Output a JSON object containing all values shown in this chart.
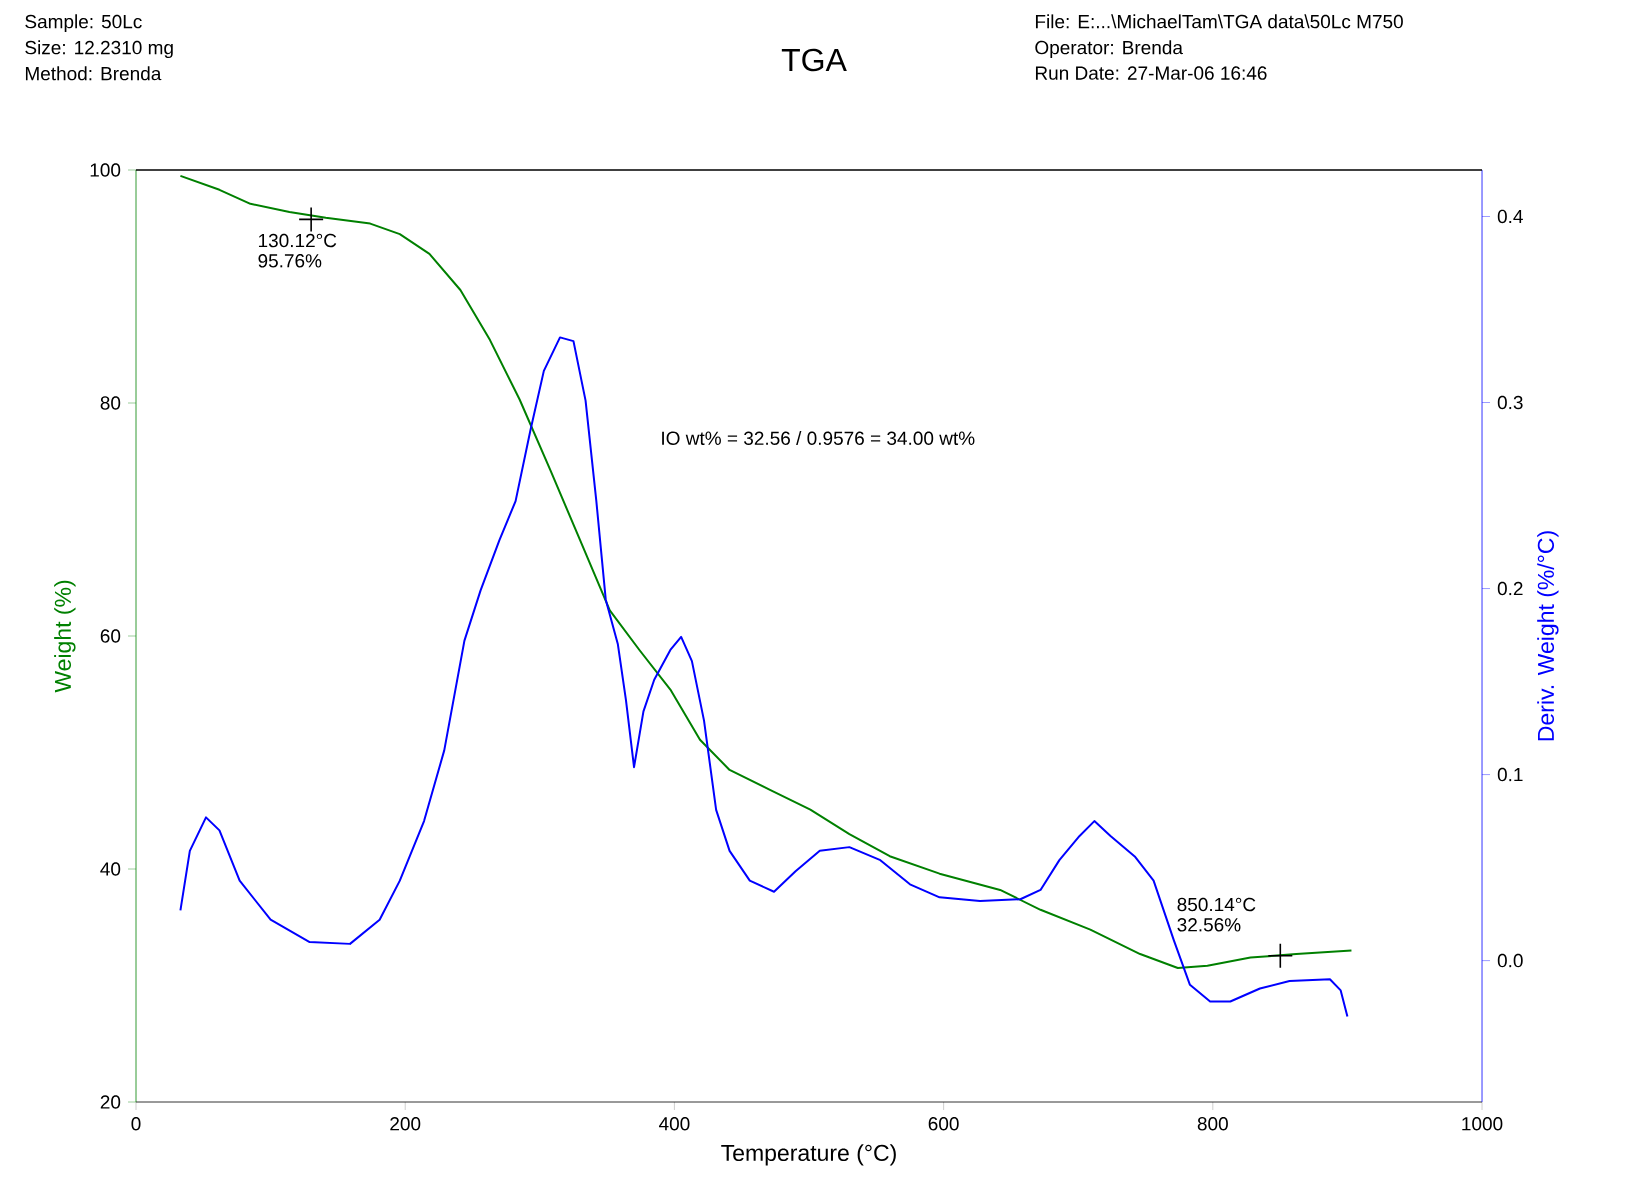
{
  "chart_data": {
    "type": "line",
    "title": "TGA",
    "xlabel": "Temperature (°C)",
    "ylabel": "Weight (%)",
    "y2label": "Deriv. Weight (%/°C)",
    "xlim": [
      0,
      1000
    ],
    "xticks": [
      0,
      200,
      400,
      600,
      800,
      1000
    ],
    "ylim": [
      20,
      100
    ],
    "yticks": [
      20,
      40,
      60,
      80,
      100
    ],
    "y2lim": [
      -0.076,
      0.425
    ],
    "y2ticks": [
      {
        "value": 0,
        "label": "0.0"
      },
      0.1,
      0.2,
      0.3,
      0.4
    ],
    "grid": false,
    "series": [
      {
        "color": "#008000",
        "x": [
          33,
          62,
          85,
          114,
          141,
          174,
          196,
          218,
          241,
          263,
          285,
          308,
          330,
          352,
          374,
          397,
          419,
          441,
          471,
          501,
          530,
          560,
          597,
          642,
          672,
          709,
          746,
          774,
          796,
          828,
          862,
          903
        ],
        "values": [
          99.5,
          98.3,
          97.1,
          96.4,
          95.9,
          95.4,
          94.5,
          92.8,
          89.7,
          85.4,
          80.3,
          74.2,
          68.2,
          62.2,
          58.8,
          55.4,
          51.1,
          48.5,
          46.8,
          45.1,
          43.0,
          41.1,
          39.6,
          38.2,
          36.5,
          34.8,
          32.7,
          31.5,
          31.7,
          32.4,
          32.7,
          33.0
        ]
      },
      {
        "color": "#0000ff",
        "axis": "y2",
        "x": [
          33,
          40,
          52,
          62,
          77,
          100,
          129,
          159,
          181,
          196,
          214,
          229,
          244,
          256,
          270,
          282,
          293,
          303,
          315,
          325,
          334,
          342,
          349,
          358,
          364,
          370,
          377,
          385,
          397,
          405,
          413,
          422,
          431,
          441,
          456,
          474,
          490,
          508,
          530,
          553,
          575,
          597,
          627,
          657,
          672,
          686,
          701,
          712,
          724,
          742,
          756,
          771,
          783,
          798,
          813,
          835,
          857,
          887,
          895,
          900
        ],
        "values": [
          0.027,
          0.059,
          0.077,
          0.07,
          0.043,
          0.022,
          0.01,
          0.009,
          0.022,
          0.043,
          0.075,
          0.113,
          0.172,
          0.199,
          0.226,
          0.247,
          0.285,
          0.317,
          0.335,
          0.333,
          0.301,
          0.247,
          0.194,
          0.17,
          0.14,
          0.104,
          0.134,
          0.151,
          0.167,
          0.174,
          0.161,
          0.129,
          0.081,
          0.059,
          0.043,
          0.037,
          0.048,
          0.059,
          0.061,
          0.054,
          0.041,
          0.034,
          0.032,
          0.033,
          0.038,
          0.054,
          0.067,
          0.075,
          0.067,
          0.056,
          0.043,
          0.011,
          -0.013,
          -0.022,
          -0.022,
          -0.015,
          -0.011,
          -0.01,
          -0.016,
          -0.03
        ]
      },
      {
        "type": "scatter",
        "marker": "cross",
        "color": "#000000",
        "x": [
          130.12,
          850.14
        ],
        "values": [
          95.76,
          32.56
        ]
      }
    ],
    "annotations": [
      "Sample: 50Lc",
      "Size:   12.2310 mg",
      "Method: Brenda",
      "File: E:...\\MichaelTam\\TGA data\\50Lc M750",
      "Operator: Brenda",
      "Run Date: 27-Mar-06 16:46",
      "IO wt% = 32.56 / 0.9576 =  34.00 wt%",
      {
        "text": "130.12°C",
        "x": 130.12,
        "y": 95.76
      },
      "95.76%",
      {
        "text": "850.14°C",
        "x": 850.14,
        "y": 32.56
      },
      "32.56%"
    ]
  }
}
